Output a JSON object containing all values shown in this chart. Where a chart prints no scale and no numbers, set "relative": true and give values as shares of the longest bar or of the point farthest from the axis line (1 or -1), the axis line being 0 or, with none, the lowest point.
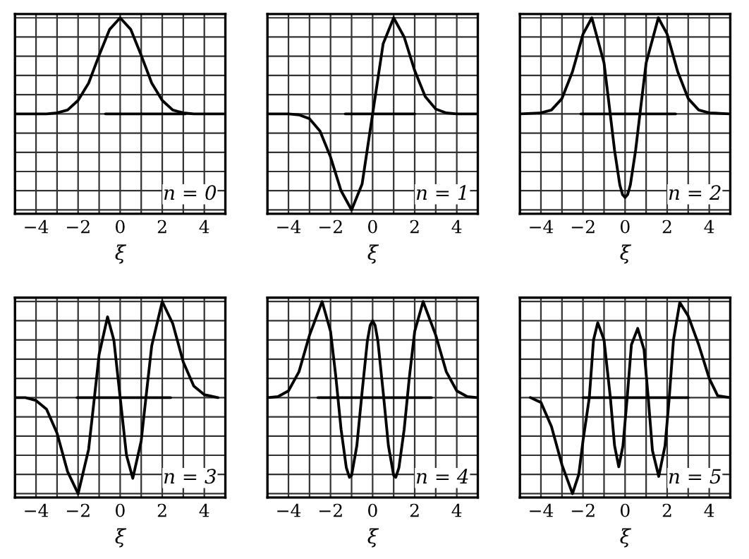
{
  "chart_data": [
    {
      "type": "line",
      "relative": true,
      "xlabel": "ξ",
      "annotations": [
        "n = 0"
      ],
      "xlim": [
        -5,
        5
      ],
      "xticks": [
        {
          "value": -5,
          "label": null
        },
        -4,
        {
          "value": -3,
          "label": null
        },
        -2,
        {
          "value": -1,
          "label": null
        },
        0,
        {
          "value": 1,
          "label": null
        },
        2,
        {
          "value": 3,
          "label": null
        },
        4,
        {
          "value": 5,
          "label": null
        }
      ],
      "grid": true,
      "tick_labels": "x",
      "series": [
        {
          "color": "#000000",
          "x": [
            -5,
            -4,
            -3.5,
            -3,
            -2.5,
            -2,
            -1.5,
            -1,
            -0.5,
            0,
            0.5,
            1,
            1.5,
            2,
            2.5,
            3,
            3.5,
            4,
            5
          ],
          "values": [
            0,
            0,
            0,
            0.01,
            0.04,
            0.14,
            0.32,
            0.61,
            0.88,
            1,
            0.88,
            0.61,
            0.32,
            0.14,
            0.04,
            0.01,
            0,
            0,
            0
          ]
        },
        {
          "color": "#000000",
          "x": [
            -0.7,
            3.1
          ],
          "values": [
            0,
            0
          ]
        }
      ]
    },
    {
      "type": "line",
      "relative": true,
      "xlabel": "ξ",
      "annotations": [
        "n = 1"
      ],
      "xlim": [
        -5,
        5
      ],
      "xticks": [
        {
          "value": -5,
          "label": null
        },
        -4,
        {
          "value": -3,
          "label": null
        },
        -2,
        {
          "value": -1,
          "label": null
        },
        0,
        {
          "value": 1,
          "label": null
        },
        2,
        {
          "value": 3,
          "label": null
        },
        4,
        {
          "value": 5,
          "label": null
        }
      ],
      "grid": true,
      "tick_labels": "x",
      "series": [
        {
          "color": "#000000",
          "x": [
            -5,
            -4,
            -3.5,
            -3,
            -2.5,
            -2,
            -1.5,
            -1,
            -0.5,
            0,
            0.5,
            1,
            1.5,
            2,
            2.5,
            3,
            3.5,
            4,
            5
          ],
          "values": [
            0,
            0,
            -0.01,
            -0.05,
            -0.18,
            -0.45,
            -0.8,
            -1,
            -0.73,
            0,
            0.73,
            1,
            0.8,
            0.45,
            0.18,
            0.05,
            0.01,
            0,
            0
          ]
        },
        {
          "color": "#000000",
          "x": [
            -1.3,
            2.0
          ],
          "values": [
            0,
            0
          ]
        }
      ]
    },
    {
      "type": "line",
      "relative": true,
      "xlabel": "ξ",
      "annotations": [
        "n = 2"
      ],
      "xlim": [
        -5,
        5
      ],
      "xticks": [
        {
          "value": -5,
          "label": null
        },
        -4,
        {
          "value": -3,
          "label": null
        },
        -2,
        {
          "value": -1,
          "label": null
        },
        0,
        {
          "value": 1,
          "label": null
        },
        2,
        {
          "value": 3,
          "label": null
        },
        4,
        {
          "value": 5,
          "label": null
        }
      ],
      "grid": true,
      "tick_labels": "x",
      "series": [
        {
          "color": "#000000",
          "x": [
            -5,
            -4,
            -3.5,
            -3,
            -2.5,
            -2,
            -1.58,
            -1,
            -0.75,
            -0.5,
            -0.25,
            -0.12,
            0,
            0.12,
            0.25,
            0.5,
            0.75,
            1,
            1.58,
            2,
            2.5,
            3,
            3.5,
            4,
            5
          ],
          "values": [
            0,
            0.01,
            0.04,
            0.16,
            0.44,
            0.83,
            1,
            0.53,
            0.08,
            -0.38,
            -0.74,
            -0.84,
            -0.87,
            -0.84,
            -0.74,
            -0.38,
            0.08,
            0.53,
            1,
            0.83,
            0.44,
            0.16,
            0.04,
            0.01,
            0
          ]
        },
        {
          "color": "#000000",
          "x": [
            -2.1,
            2.4
          ],
          "values": [
            0,
            0
          ]
        }
      ]
    },
    {
      "type": "line",
      "relative": true,
      "xlabel": "ξ",
      "annotations": [
        "n = 3"
      ],
      "xlim": [
        -5,
        5
      ],
      "xticks": [
        {
          "value": -5,
          "label": null
        },
        -4,
        {
          "value": -3,
          "label": null
        },
        -2,
        {
          "value": -1,
          "label": null
        },
        0,
        {
          "value": 1,
          "label": null
        },
        2,
        {
          "value": 3,
          "label": null
        },
        4,
        {
          "value": 5,
          "label": null
        }
      ],
      "grid": true,
      "tick_labels": "x",
      "series": [
        {
          "color": "#000000",
          "x": [
            -5,
            -4.5,
            -4,
            -3.5,
            -3,
            -2.5,
            -2,
            -1.5,
            -1.25,
            -1,
            -0.6,
            -0.3,
            0,
            0.3,
            0.6,
            1,
            1.25,
            1.5,
            2,
            2.5,
            3,
            3.5,
            4,
            4.65
          ],
          "values": [
            0,
            0,
            -0.03,
            -0.12,
            -0.37,
            -0.77,
            -1,
            -0.54,
            -0.05,
            0.45,
            0.84,
            0.6,
            0,
            -0.6,
            -0.84,
            -0.45,
            0.05,
            0.54,
            1,
            0.77,
            0.37,
            0.12,
            0.03,
            0
          ]
        },
        {
          "color": "#000000",
          "x": [
            -2.05,
            2.4
          ],
          "values": [
            0,
            0
          ]
        }
      ]
    },
    {
      "type": "line",
      "relative": true,
      "xlabel": "ξ",
      "annotations": [
        "n = 4"
      ],
      "xlim": [
        -5,
        5
      ],
      "xticks": [
        {
          "value": -5,
          "label": null
        },
        -4,
        {
          "value": -3,
          "label": null
        },
        -2,
        {
          "value": -1,
          "label": null
        },
        0,
        {
          "value": 1,
          "label": null
        },
        2,
        {
          "value": 3,
          "label": null
        },
        4,
        {
          "value": 5,
          "label": null
        }
      ],
      "grid": true,
      "tick_labels": "x",
      "series": [
        {
          "color": "#000000",
          "x": [
            -5,
            -4.5,
            -4,
            -3.5,
            -3,
            -2.4,
            -2,
            -1.75,
            -1.5,
            -1.25,
            -1.1,
            -1,
            -0.75,
            -0.5,
            -0.25,
            -0.12,
            0,
            0.12,
            0.25,
            0.5,
            0.75,
            1,
            1.1,
            1.25,
            1.5,
            1.75,
            2,
            2.4,
            3,
            3.5,
            4,
            4.5,
            5
          ],
          "values": [
            0,
            0.01,
            0.07,
            0.27,
            0.65,
            1,
            0.69,
            0.22,
            -0.33,
            -0.73,
            -0.83,
            -0.81,
            -0.5,
            0.06,
            0.59,
            0.75,
            0.8,
            0.75,
            0.59,
            0.06,
            -0.5,
            -0.81,
            -0.83,
            -0.73,
            -0.33,
            0.22,
            0.69,
            1,
            0.65,
            0.27,
            0.07,
            0.01,
            0
          ]
        },
        {
          "color": "#000000",
          "x": [
            -2.6,
            2.8
          ],
          "values": [
            0,
            0
          ]
        }
      ]
    },
    {
      "type": "line",
      "relative": true,
      "xlabel": "ξ",
      "annotations": [
        "n = 5"
      ],
      "xlim": [
        -5,
        5
      ],
      "xticks": [
        {
          "value": -5,
          "label": null
        },
        -4,
        {
          "value": -3,
          "label": null
        },
        -2,
        {
          "value": -1,
          "label": null
        },
        0,
        {
          "value": 1,
          "label": null
        },
        2,
        {
          "value": 3,
          "label": null
        },
        4,
        {
          "value": 5,
          "label": null
        }
      ],
      "grid": true,
      "tick_labels": "x",
      "series": [
        {
          "color": "#000000",
          "x": [
            -4.5,
            -4,
            -3.5,
            -3,
            -2.5,
            -2.2,
            -2,
            -1.7,
            -1.5,
            -1.3,
            -1,
            -0.7,
            -0.5,
            -0.3,
            -0.1,
            0.1,
            0.3,
            0.6,
            0.9,
            1.1,
            1.3,
            1.6,
            1.9,
            2.1,
            2.3,
            2.6,
            3,
            3.5,
            4,
            4.4,
            5
          ],
          "values": [
            0,
            -0.05,
            -0.3,
            -0.7,
            -1,
            -0.8,
            -0.45,
            0,
            0.6,
            0.78,
            0.6,
            0,
            -0.5,
            -0.72,
            -0.5,
            0,
            0.55,
            0.72,
            0.5,
            0,
            -0.55,
            -0.82,
            -0.5,
            0,
            0.6,
            0.99,
            0.85,
            0.55,
            0.2,
            0.02,
            0
          ]
        },
        {
          "color": "#000000",
          "x": [
            -2.0,
            3.0
          ],
          "values": [
            0,
            0
          ]
        }
      ]
    }
  ]
}
